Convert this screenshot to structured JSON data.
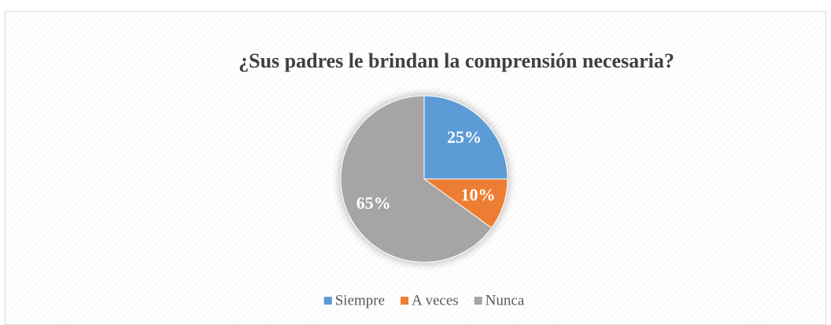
{
  "chart_data": {
    "type": "pie",
    "title": "¿Sus padres le brindan la comprensión necesaria?",
    "categories": [
      "Siempre",
      "A veces",
      "Nunca"
    ],
    "values": [
      25,
      10,
      65
    ],
    "value_labels": [
      "25%",
      "10%",
      "65%"
    ],
    "colors": [
      "#5b9bd5",
      "#ed7d31",
      "#a5a5a5"
    ]
  }
}
